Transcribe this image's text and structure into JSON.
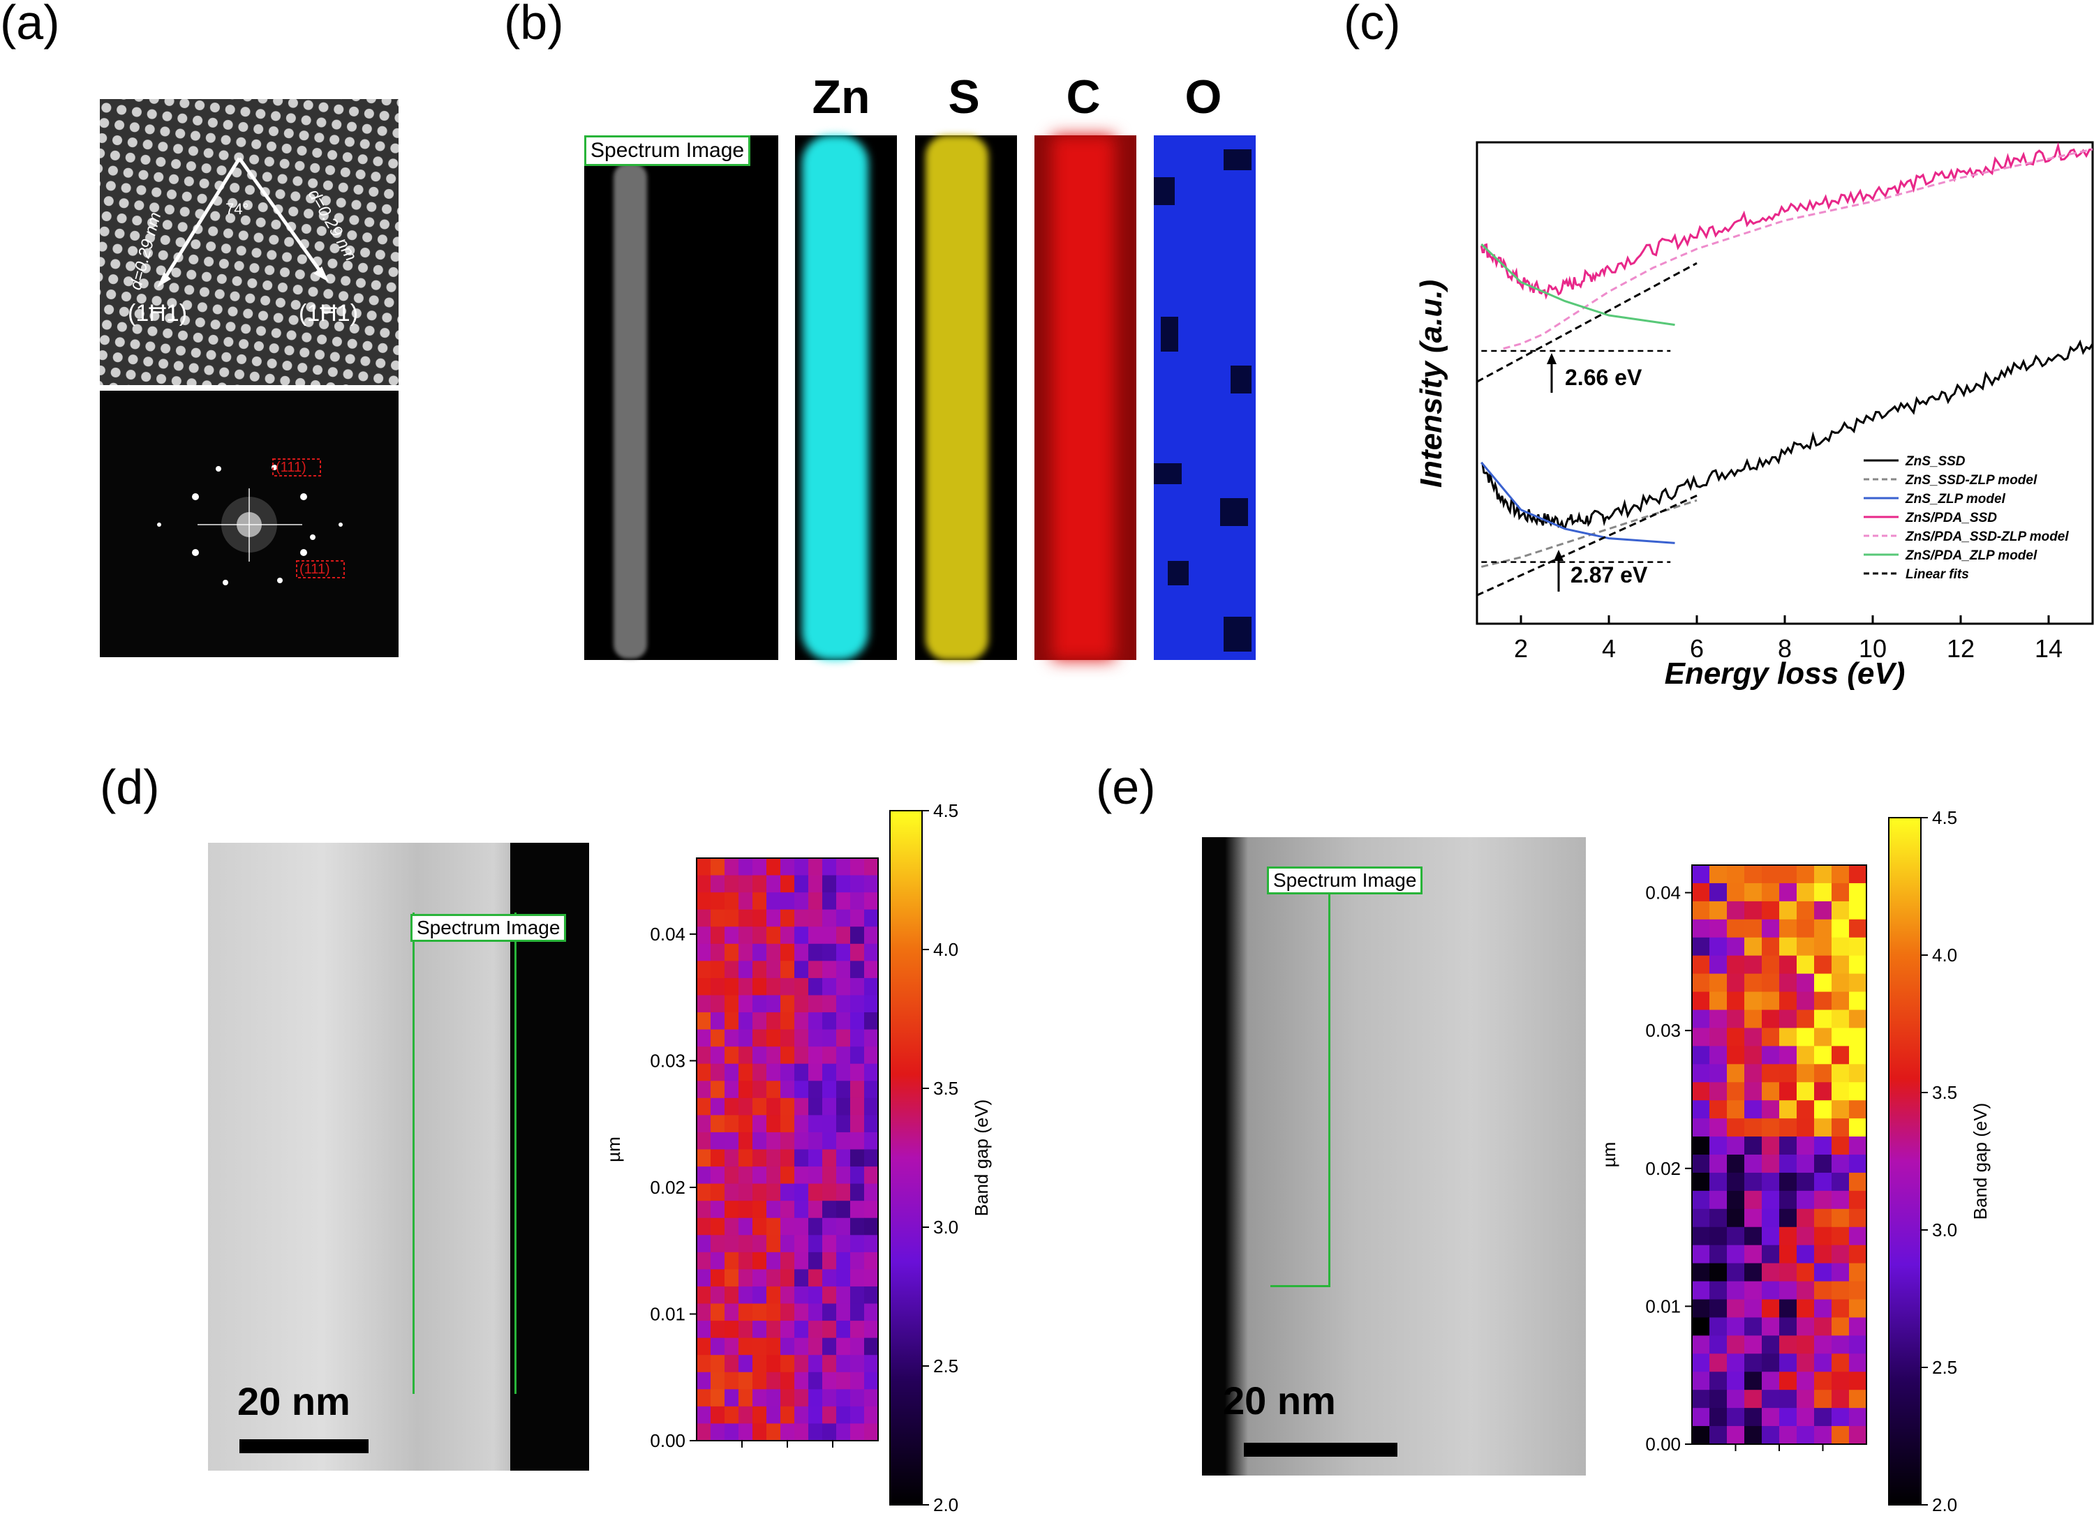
{
  "panels": {
    "a": {
      "label": "(a)",
      "angle": "74°",
      "d_left": "d=0.29 nm",
      "d_right": "d=0.29 nm",
      "plane_left": "(1Ħ1)",
      "plane_right": "(1Ħ1)",
      "fft_top_label": "(111)",
      "fft_bottom_label": "(111)"
    },
    "b": {
      "label": "(b)",
      "spectrum_image": "Spectrum Image",
      "elements": [
        "Zn",
        "S",
        "C",
        "O"
      ],
      "element_colors": [
        "#23e3e3",
        "#cdbd13",
        "#e01010",
        "#1a2fe0"
      ]
    },
    "c": {
      "label": "(c)"
    },
    "d": {
      "label": "(d)",
      "spectrum_image": "Spectrum Image",
      "scale_bar": "20 nm"
    },
    "e": {
      "label": "(e)",
      "spectrum_image": "Spectrum Image",
      "scale_bar": "20 nm"
    }
  },
  "chart_data": [
    {
      "type": "line",
      "panel": "c",
      "xlabel": "Energy loss (eV)",
      "ylabel": "Intensity (a.u.)",
      "xlim": [
        1,
        15
      ],
      "xticks": [
        2,
        4,
        6,
        8,
        10,
        12,
        14
      ],
      "annotations": [
        "2.66 eV",
        "2.87 eV"
      ],
      "legend_position": "bottom-right",
      "series": [
        {
          "name": "ZnS_SSD",
          "color": "#000000",
          "style": "solid",
          "x": [
            1.1,
            1.5,
            2,
            2.5,
            3,
            3.5,
            4,
            5,
            6,
            7,
            8,
            9,
            10,
            11,
            12,
            13,
            14,
            15
          ],
          "y": [
            0.34,
            0.27,
            0.23,
            0.22,
            0.215,
            0.22,
            0.23,
            0.26,
            0.3,
            0.33,
            0.36,
            0.4,
            0.43,
            0.46,
            0.49,
            0.53,
            0.56,
            0.59
          ]
        },
        {
          "name": "ZnS_SSD-ZLP model",
          "color": "#888888",
          "style": "dashed",
          "x": [
            1.1,
            2,
            3,
            4,
            5,
            6
          ],
          "y": [
            0.12,
            0.14,
            0.17,
            0.2,
            0.23,
            0.26
          ]
        },
        {
          "name": "ZnS_ZLP model",
          "color": "#3a62d0",
          "style": "solid",
          "x": [
            1.1,
            2,
            3,
            4,
            5.5
          ],
          "y": [
            0.34,
            0.24,
            0.2,
            0.18,
            0.17
          ]
        },
        {
          "name": "ZnS/PDA_SSD",
          "color": "#e8288a",
          "style": "solid",
          "x": [
            1.1,
            1.5,
            2,
            2.5,
            3,
            3.5,
            4,
            5,
            6,
            7,
            8,
            9,
            10,
            11,
            12,
            13,
            14,
            15
          ],
          "y": [
            0.8,
            0.76,
            0.72,
            0.7,
            0.71,
            0.73,
            0.75,
            0.79,
            0.82,
            0.85,
            0.87,
            0.89,
            0.91,
            0.93,
            0.95,
            0.97,
            0.99,
            1.0
          ]
        },
        {
          "name": "ZnS/PDA_SSD-ZLP model",
          "color": "#ee8ccc",
          "style": "dashed",
          "x": [
            1.6,
            2,
            2.5,
            3,
            3.5,
            4,
            5,
            6,
            7,
            8,
            10,
            12,
            14,
            15
          ],
          "y": [
            0.58,
            0.59,
            0.61,
            0.64,
            0.67,
            0.7,
            0.75,
            0.79,
            0.82,
            0.85,
            0.89,
            0.94,
            0.98,
            1.0
          ]
        },
        {
          "name": "ZnS/PDA_ZLP model",
          "color": "#58c878",
          "style": "solid",
          "x": [
            1.1,
            2,
            3,
            4,
            5.5
          ],
          "y": [
            0.8,
            0.72,
            0.68,
            0.65,
            0.63
          ]
        },
        {
          "name": "Linear fits",
          "color": "#000000",
          "style": "dashed",
          "x": [
            1,
            6
          ],
          "y": [
            0.51,
            0.76
          ]
        }
      ]
    },
    {
      "type": "heatmap",
      "panel": "d",
      "ylabel": "µm",
      "yticks": [
        "0.00",
        "0.01",
        "0.02",
        "0.03",
        "0.04"
      ],
      "ylim": [
        0,
        0.046
      ],
      "colorbar_label": "Band gap (eV)",
      "colorbar_ticks": [
        "2.0",
        "2.5",
        "3.0",
        "3.5",
        "4.0",
        "4.5"
      ],
      "vlim": [
        2.0,
        4.5
      ],
      "shape": [
        34,
        13
      ],
      "typical_range": [
        2.6,
        3.9
      ]
    },
    {
      "type": "heatmap",
      "panel": "e",
      "ylabel": "µm",
      "yticks": [
        "0.00",
        "0.01",
        "0.02",
        "0.03",
        "0.04"
      ],
      "ylim": [
        0,
        0.042
      ],
      "colorbar_label": "Band gap (eV)",
      "colorbar_ticks": [
        "2.0",
        "2.5",
        "3.0",
        "3.5",
        "4.0",
        "4.5"
      ],
      "vlim": [
        2.0,
        4.5
      ],
      "shape": [
        32,
        10
      ],
      "typical_range": [
        2.0,
        4.4
      ]
    }
  ]
}
